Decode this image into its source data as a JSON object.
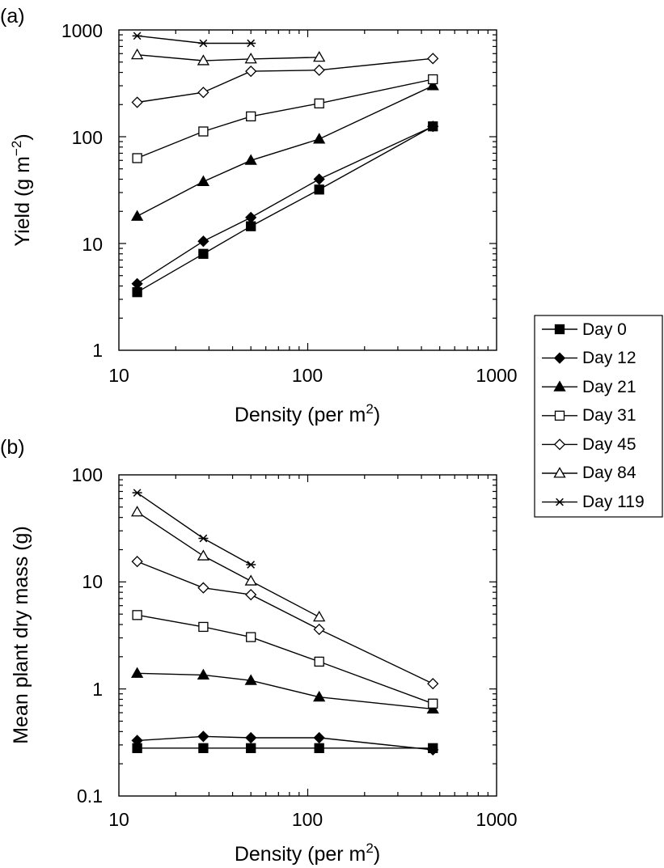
{
  "chart_data": [
    {
      "panel_label": "(a)",
      "type": "line",
      "xlabel": "Density (per m",
      "xlabel_sup": "2",
      "xlabel_close": ")",
      "ylabel": "Yield (g m",
      "ylabel_sup": "−2",
      "ylabel_close": ")",
      "x_scale": "log",
      "y_scale": "log",
      "xlim": [
        10,
        1000
      ],
      "ylim": [
        1,
        1000
      ],
      "x_ticks": [
        {
          "value": 10,
          "label": "10"
        },
        {
          "value": 100,
          "label": "100"
        },
        {
          "value": 1000,
          "label": "1000"
        }
      ],
      "y_ticks": [
        {
          "value": 1,
          "label": "1"
        },
        {
          "value": 10,
          "label": "10"
        },
        {
          "value": 100,
          "label": "100"
        },
        {
          "value": 1000,
          "label": "1000"
        }
      ],
      "grid": false,
      "series": [
        {
          "name": "Day 0",
          "marker": "square-filled",
          "points": [
            [
              12.5,
              3.5
            ],
            [
              28,
              8
            ],
            [
              50,
              14.5
            ],
            [
              115,
              32
            ],
            [
              460,
              125
            ]
          ]
        },
        {
          "name": "Day 12",
          "marker": "diamond-filled",
          "points": [
            [
              12.5,
              4.2
            ],
            [
              28,
              10.5
            ],
            [
              50,
              17.5
            ],
            [
              115,
              40
            ],
            [
              460,
              125
            ]
          ]
        },
        {
          "name": "Day 21",
          "marker": "triangle-filled",
          "points": [
            [
              12.5,
              18
            ],
            [
              28,
              38
            ],
            [
              50,
              60
            ],
            [
              115,
              95
            ],
            [
              460,
              300
            ]
          ]
        },
        {
          "name": "Day 31",
          "marker": "square-open",
          "points": [
            [
              12.5,
              63
            ],
            [
              28,
              112
            ],
            [
              50,
              155
            ],
            [
              115,
              205
            ],
            [
              460,
              345
            ]
          ]
        },
        {
          "name": "Day 45",
          "marker": "diamond-open",
          "points": [
            [
              12.5,
              210
            ],
            [
              28,
              260
            ],
            [
              50,
              410
            ],
            [
              115,
              420
            ],
            [
              460,
              540
            ]
          ]
        },
        {
          "name": "Day 84",
          "marker": "triangle-open",
          "points": [
            [
              12.5,
              585
            ],
            [
              28,
              515
            ],
            [
              50,
              535
            ],
            [
              115,
              555
            ]
          ]
        },
        {
          "name": "Day 119",
          "marker": "asterisk",
          "points": [
            [
              12.5,
              880
            ],
            [
              28,
              750
            ],
            [
              50,
              750
            ]
          ]
        }
      ]
    },
    {
      "panel_label": "(b)",
      "type": "line",
      "xlabel": "Density (per m",
      "xlabel_sup": "2",
      "xlabel_close": ")",
      "ylabel": "Mean plant dry mass (g)",
      "x_scale": "log",
      "y_scale": "log",
      "xlim": [
        10,
        1000
      ],
      "ylim": [
        0.1,
        100
      ],
      "x_ticks": [
        {
          "value": 10,
          "label": "10"
        },
        {
          "value": 100,
          "label": "100"
        },
        {
          "value": 1000,
          "label": "1000"
        }
      ],
      "y_ticks": [
        {
          "value": 0.1,
          "label": "0.1"
        },
        {
          "value": 1,
          "label": "1"
        },
        {
          "value": 10,
          "label": "10"
        },
        {
          "value": 100,
          "label": "100"
        }
      ],
      "grid": false,
      "series": [
        {
          "name": "Day 0",
          "marker": "square-filled",
          "points": [
            [
              12.5,
              0.28
            ],
            [
              28,
              0.28
            ],
            [
              50,
              0.28
            ],
            [
              115,
              0.28
            ],
            [
              460,
              0.28
            ]
          ]
        },
        {
          "name": "Day 12",
          "marker": "diamond-filled",
          "points": [
            [
              12.5,
              0.33
            ],
            [
              28,
              0.36
            ],
            [
              50,
              0.35
            ],
            [
              115,
              0.35
            ],
            [
              460,
              0.27
            ]
          ]
        },
        {
          "name": "Day 21",
          "marker": "triangle-filled",
          "points": [
            [
              12.5,
              1.4
            ],
            [
              28,
              1.35
            ],
            [
              50,
              1.2
            ],
            [
              115,
              0.84
            ],
            [
              460,
              0.65
            ]
          ]
        },
        {
          "name": "Day 31",
          "marker": "square-open",
          "points": [
            [
              12.5,
              4.9
            ],
            [
              28,
              3.8
            ],
            [
              50,
              3.05
            ],
            [
              115,
              1.8
            ],
            [
              460,
              0.73
            ]
          ]
        },
        {
          "name": "Day 45",
          "marker": "diamond-open",
          "points": [
            [
              12.5,
              15.5
            ],
            [
              28,
              8.8
            ],
            [
              50,
              7.6
            ],
            [
              115,
              3.6
            ],
            [
              460,
              1.12
            ]
          ]
        },
        {
          "name": "Day 84",
          "marker": "triangle-open",
          "points": [
            [
              12.5,
              45
            ],
            [
              28,
              17.5
            ],
            [
              50,
              10.2
            ],
            [
              115,
              4.7
            ]
          ]
        },
        {
          "name": "Day 119",
          "marker": "asterisk",
          "points": [
            [
              12.5,
              68
            ],
            [
              28,
              25.5
            ],
            [
              50,
              14.5
            ]
          ]
        }
      ]
    }
  ],
  "legend": {
    "placement": "right, between panels",
    "entries": [
      {
        "label": "Day 0",
        "marker": "square-filled"
      },
      {
        "label": "Day 12",
        "marker": "diamond-filled"
      },
      {
        "label": "Day 21",
        "marker": "triangle-filled"
      },
      {
        "label": "Day 31",
        "marker": "square-open"
      },
      {
        "label": "Day 45",
        "marker": "diamond-open"
      },
      {
        "label": "Day 84",
        "marker": "triangle-open"
      },
      {
        "label": "Day 119",
        "marker": "asterisk"
      }
    ]
  },
  "colors": {
    "ink": "#000000",
    "background": "#ffffff"
  }
}
